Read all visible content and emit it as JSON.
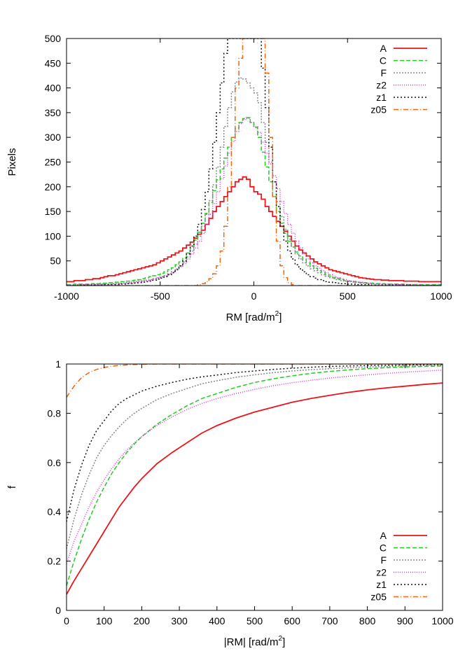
{
  "chart_data": [
    {
      "type": "line",
      "subtype": "histogram-step",
      "xlabel_main": "RM [rad/m",
      "xlabel_sup": "2",
      "xlabel_close": "]",
      "ylabel": "Pixels",
      "xlim": [
        -1000,
        1000
      ],
      "ylim": [
        0,
        500
      ],
      "xticks": [
        -1000,
        -500,
        0,
        500,
        1000
      ],
      "yticks": [
        50,
        100,
        150,
        200,
        250,
        300,
        350,
        400,
        450,
        500
      ],
      "grid": false,
      "legend_position": "top-right",
      "bin_width": 20,
      "bin_start": -1000,
      "series": [
        {
          "name": "A",
          "color": "#e8151b",
          "dash": "solid",
          "values": [
            8,
            8,
            10,
            10,
            10,
            12,
            12,
            14,
            14,
            16,
            18,
            20,
            20,
            22,
            24,
            26,
            28,
            30,
            32,
            34,
            36,
            38,
            40,
            42,
            46,
            50,
            54,
            58,
            62,
            66,
            70,
            76,
            82,
            88,
            96,
            104,
            112,
            124,
            136,
            150,
            160,
            170,
            180,
            190,
            200,
            210,
            215,
            220,
            215,
            200,
            190,
            185,
            175,
            160,
            150,
            140,
            130,
            120,
            110,
            100,
            90,
            80,
            72,
            66,
            60,
            54,
            48,
            44,
            40,
            36,
            32,
            30,
            28,
            26,
            24,
            22,
            20,
            18,
            16,
            15,
            14,
            13,
            12,
            12,
            11,
            11,
            10,
            10,
            10,
            10,
            9,
            9,
            9,
            9,
            8,
            8,
            8,
            8,
            8,
            8
          ]
        },
        {
          "name": "C",
          "color": "#22cc22",
          "dash": "6,3",
          "values": [
            2,
            2,
            3,
            3,
            3,
            3,
            4,
            4,
            4,
            5,
            5,
            6,
            6,
            7,
            8,
            8,
            9,
            10,
            11,
            12,
            14,
            16,
            18,
            20,
            22,
            25,
            28,
            32,
            36,
            42,
            48,
            56,
            66,
            78,
            92,
            108,
            126,
            146,
            168,
            192,
            214,
            236,
            258,
            280,
            300,
            318,
            330,
            338,
            340,
            330,
            320,
            300,
            270,
            240,
            210,
            180,
            150,
            126,
            106,
            90,
            78,
            68,
            60,
            52,
            46,
            40,
            35,
            30,
            26,
            22,
            19,
            16,
            14,
            12,
            10,
            9,
            8,
            7,
            6,
            6,
            5,
            5,
            4,
            4,
            4,
            3,
            3,
            3,
            3,
            3,
            2,
            2,
            2,
            2,
            2,
            2,
            2,
            2,
            2,
            2
          ]
        },
        {
          "name": "F",
          "color": "#888888",
          "dash": "2,2",
          "values": [
            1,
            1,
            1,
            2,
            2,
            2,
            2,
            2,
            3,
            3,
            3,
            3,
            4,
            4,
            5,
            5,
            6,
            7,
            8,
            9,
            10,
            11,
            12,
            14,
            16,
            18,
            20,
            24,
            28,
            34,
            40,
            48,
            58,
            70,
            84,
            100,
            120,
            144,
            172,
            204,
            240,
            280,
            322,
            360,
            392,
            412,
            420,
            418,
            410,
            400,
            390,
            370,
            330,
            290,
            250,
            210,
            170,
            140,
            114,
            94,
            78,
            64,
            54,
            46,
            40,
            34,
            30,
            26,
            22,
            19,
            16,
            14,
            12,
            10,
            9,
            8,
            7,
            6,
            5,
            5,
            4,
            4,
            3,
            3,
            3,
            3,
            2,
            2,
            2,
            2,
            2,
            2,
            1,
            1,
            1,
            1,
            1,
            1,
            1,
            1
          ]
        },
        {
          "name": "z2",
          "color": "#d433d4",
          "dash": "1,2",
          "values": [
            1,
            1,
            1,
            1,
            2,
            2,
            2,
            2,
            2,
            3,
            3,
            3,
            3,
            4,
            4,
            5,
            5,
            6,
            7,
            8,
            9,
            10,
            11,
            13,
            15,
            17,
            20,
            23,
            27,
            32,
            38,
            45,
            54,
            64,
            76,
            90,
            106,
            124,
            144,
            166,
            190,
            216,
            242,
            268,
            292,
            312,
            328,
            336,
            338,
            330,
            322,
            310,
            290,
            268,
            246,
            222,
            196,
            170,
            146,
            124,
            106,
            90,
            76,
            64,
            54,
            46,
            40,
            35,
            30,
            26,
            22,
            19,
            16,
            14,
            12,
            10,
            9,
            8,
            7,
            6,
            5,
            5,
            4,
            4,
            3,
            3,
            3,
            3,
            2,
            2,
            2,
            2,
            2,
            2,
            1,
            1,
            1,
            1,
            1,
            1
          ]
        },
        {
          "name": "z1",
          "color": "#111111",
          "dash": "2,3",
          "values": [
            0,
            0,
            0,
            1,
            1,
            1,
            1,
            1,
            1,
            1,
            2,
            2,
            2,
            2,
            3,
            3,
            4,
            4,
            5,
            6,
            7,
            8,
            9,
            11,
            13,
            15,
            18,
            22,
            26,
            32,
            40,
            50,
            64,
            80,
            100,
            124,
            154,
            190,
            236,
            290,
            350,
            410,
            470,
            500,
            500,
            500,
            500,
            500,
            500,
            500,
            500,
            500,
            440,
            360,
            280,
            210,
            160,
            120,
            90,
            70,
            54,
            42,
            34,
            28,
            22,
            18,
            15,
            12,
            10,
            8,
            7,
            6,
            5,
            4,
            4,
            3,
            3,
            2,
            2,
            2,
            2,
            1,
            1,
            1,
            1,
            1,
            1,
            1,
            1,
            1,
            1,
            1,
            0,
            0,
            0,
            0,
            0,
            0,
            0,
            0
          ]
        },
        {
          "name": "z05",
          "color": "#ee6611",
          "dash": "7,3,1,3",
          "values": [
            0,
            0,
            0,
            0,
            0,
            0,
            0,
            0,
            0,
            0,
            0,
            0,
            0,
            0,
            0,
            0,
            0,
            0,
            0,
            0,
            0,
            0,
            0,
            0,
            0,
            0,
            0,
            0,
            0,
            0,
            0,
            0,
            0,
            0,
            0,
            2,
            4,
            8,
            14,
            24,
            40,
            70,
            120,
            200,
            300,
            400,
            460,
            500,
            500,
            500,
            500,
            500,
            500,
            430,
            300,
            180,
            90,
            40,
            16,
            6,
            2,
            0,
            0,
            0,
            0,
            0,
            0,
            0,
            0,
            0,
            0,
            0,
            0,
            0,
            0,
            0,
            0,
            0,
            0,
            0,
            0,
            0,
            0,
            0,
            0,
            0,
            0,
            0,
            0,
            0,
            0,
            0,
            0,
            0,
            0,
            0,
            0,
            0,
            0,
            0
          ]
        }
      ]
    },
    {
      "type": "line",
      "xlabel_main": "|RM| [rad/m",
      "xlabel_sup": "2",
      "xlabel_close": "]",
      "ylabel": "f",
      "xlim": [
        0,
        1000
      ],
      "ylim": [
        0,
        1
      ],
      "xticks": [
        0,
        100,
        200,
        300,
        400,
        500,
        600,
        700,
        800,
        900,
        1000
      ],
      "yticks": [
        0,
        0.2,
        0.4,
        0.6,
        0.8,
        1
      ],
      "grid": false,
      "legend_position": "bottom-right",
      "x": [
        0,
        20,
        40,
        60,
        80,
        100,
        120,
        140,
        160,
        180,
        200,
        240,
        280,
        320,
        360,
        400,
        450,
        500,
        550,
        600,
        650,
        700,
        750,
        800,
        850,
        900,
        950,
        1000
      ],
      "series": [
        {
          "name": "A",
          "color": "#e8151b",
          "dash": "solid",
          "values": [
            0.065,
            0.12,
            0.17,
            0.22,
            0.27,
            0.32,
            0.37,
            0.42,
            0.46,
            0.5,
            0.535,
            0.595,
            0.64,
            0.68,
            0.72,
            0.75,
            0.78,
            0.805,
            0.825,
            0.845,
            0.86,
            0.873,
            0.885,
            0.895,
            0.903,
            0.91,
            0.917,
            0.923
          ]
        },
        {
          "name": "C",
          "color": "#22cc22",
          "dash": "6,3",
          "values": [
            0.1,
            0.2,
            0.29,
            0.37,
            0.44,
            0.5,
            0.555,
            0.6,
            0.64,
            0.675,
            0.705,
            0.755,
            0.795,
            0.83,
            0.86,
            0.88,
            0.905,
            0.925,
            0.94,
            0.952,
            0.962,
            0.97,
            0.976,
            0.981,
            0.985,
            0.988,
            0.99,
            0.992
          ]
        },
        {
          "name": "F",
          "color": "#888888",
          "dash": "2,2",
          "values": [
            0.25,
            0.37,
            0.47,
            0.55,
            0.62,
            0.67,
            0.71,
            0.745,
            0.775,
            0.8,
            0.82,
            0.855,
            0.88,
            0.9,
            0.92,
            0.932,
            0.946,
            0.956,
            0.965,
            0.972,
            0.977,
            0.981,
            0.985,
            0.988,
            0.99,
            0.992,
            0.994,
            0.995
          ]
        },
        {
          "name": "z2",
          "color": "#d433d4",
          "dash": "1,2",
          "values": [
            0.19,
            0.28,
            0.35,
            0.42,
            0.48,
            0.53,
            0.575,
            0.615,
            0.65,
            0.68,
            0.705,
            0.75,
            0.785,
            0.815,
            0.84,
            0.86,
            0.88,
            0.897,
            0.912,
            0.924,
            0.934,
            0.943,
            0.95,
            0.956,
            0.962,
            0.967,
            0.971,
            0.975
          ]
        },
        {
          "name": "z1",
          "color": "#111111",
          "dash": "2,3",
          "values": [
            0.36,
            0.49,
            0.59,
            0.67,
            0.73,
            0.77,
            0.81,
            0.84,
            0.86,
            0.875,
            0.89,
            0.91,
            0.925,
            0.938,
            0.948,
            0.955,
            0.965,
            0.972,
            0.978,
            0.983,
            0.987,
            0.99,
            0.992,
            0.994,
            0.995,
            0.996,
            0.997,
            0.998
          ]
        },
        {
          "name": "z05",
          "color": "#ee6611",
          "dash": "7,3,1,3",
          "values": [
            0.865,
            0.91,
            0.945,
            0.965,
            0.978,
            0.986,
            0.991,
            0.994,
            0.996,
            0.998,
            0.999,
            1,
            1,
            1,
            1,
            1,
            1,
            1,
            1,
            1,
            1,
            1,
            1,
            1,
            1,
            1,
            1,
            1
          ]
        }
      ]
    }
  ]
}
